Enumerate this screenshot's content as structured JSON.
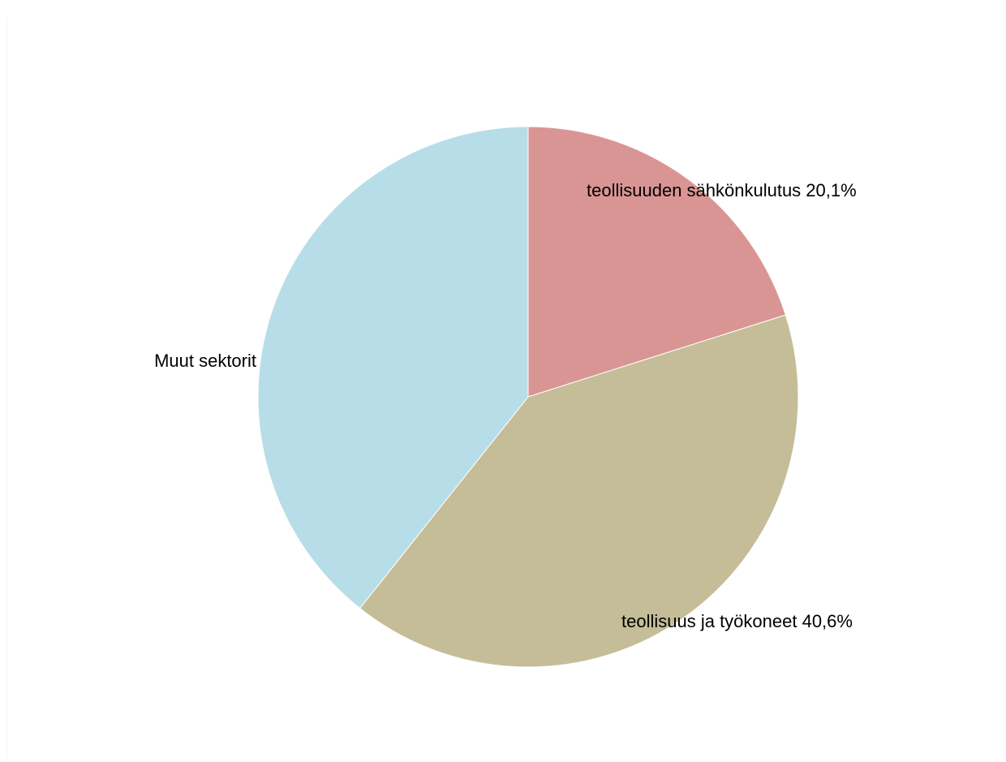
{
  "chart_data": {
    "type": "pie",
    "title": "",
    "slices": [
      {
        "label": "teollisuuden sähkönkulutus 20,1%",
        "value": 20.1,
        "color": "#d99594"
      },
      {
        "label": "teollisuus ja työkoneet 40,6%",
        "value": 40.6,
        "color": "#c4bd97"
      },
      {
        "label": "Muut sektorit",
        "value": 39.3,
        "color": "#b7dde8"
      }
    ],
    "start_angle_deg": 0,
    "direction": "clockwise",
    "legend": "none",
    "data_labels": "outside-end"
  }
}
